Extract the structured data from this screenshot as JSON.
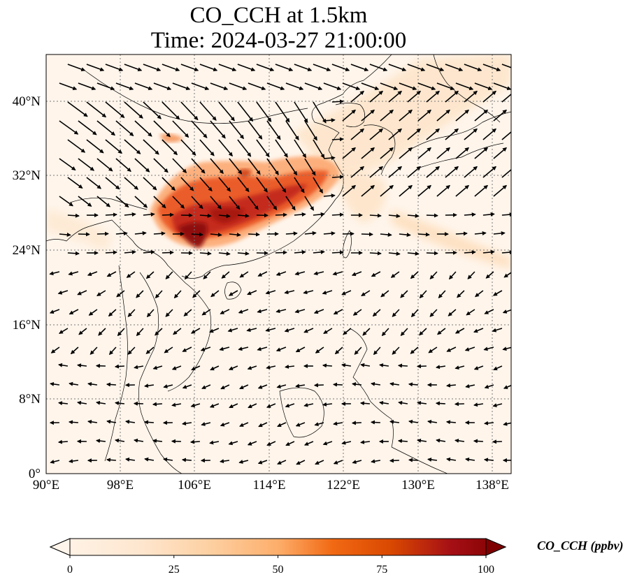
{
  "title": {
    "line1": "CO_CCH at 1.5km",
    "line2": "Time: 2024-03-27 21:00:00"
  },
  "map": {
    "projection": "PlateCarree",
    "lon_range": [
      90,
      140
    ],
    "lat_range": [
      0,
      45
    ],
    "lon_ticks": [
      "90°E",
      "98°E",
      "106°E",
      "114°E",
      "122°E",
      "130°E",
      "138°E"
    ],
    "lat_ticks": [
      "0°",
      "8°N",
      "16°N",
      "24°N",
      "32°N",
      "40°N"
    ],
    "gridlines": true,
    "background_color": "#fff5eb",
    "field_name": "CO_CCH",
    "vectors": "wind arrows"
  },
  "colorbar": {
    "label": "CO_CCH (ppbv)",
    "ticks": [
      "0",
      "25",
      "50",
      "75",
      "100"
    ],
    "min": 0,
    "max": 100,
    "extend": "both",
    "colormap": [
      "#fff5eb",
      "#fdd0a2",
      "#fd8d3c",
      "#d94801",
      "#a50f15",
      "#7f0000"
    ]
  }
}
